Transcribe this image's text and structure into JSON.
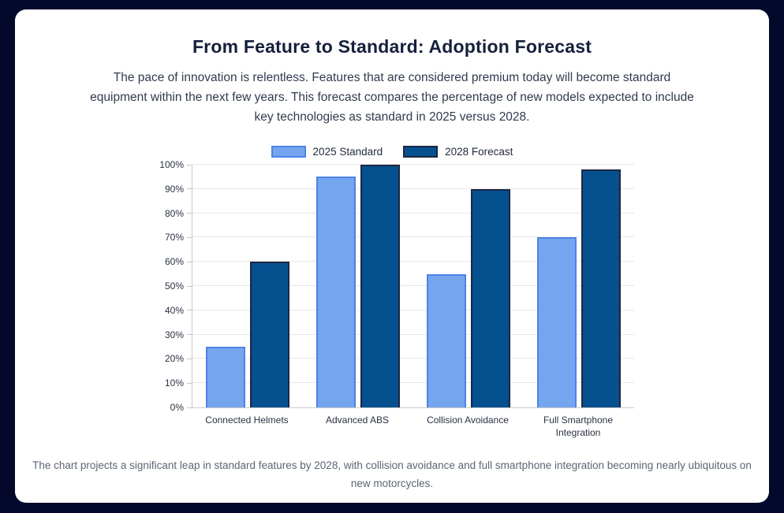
{
  "card": {
    "title": "From Feature to Standard: Adoption Forecast",
    "subtitle": "The pace of innovation is relentless. Features that are considered premium today will become standard equipment within the next few years. This forecast compares the percentage of new models expected to include key technologies as standard in 2025 versus 2028.",
    "footer": "The chart projects a significant leap in standard features by 2028, with collision avoidance and full smartphone integration becoming nearly ubiquitous on new motorcycles."
  },
  "colors": {
    "page_background": "#04082a",
    "card_background": "#ffffff",
    "series_2025_fill": "#76a5ef",
    "series_2025_border": "#4d82e8",
    "series_2028_fill": "#05508f",
    "series_2028_border": "#1c2742",
    "gridline": "#e7e7e9",
    "axis": "#c9c9c9"
  },
  "chart_data": {
    "type": "bar",
    "title": "From Feature to Standard: Adoption Forecast",
    "categories": [
      "Connected Helmets",
      "Advanced ABS",
      "Collision Avoidance",
      "Full Smartphone Integration"
    ],
    "series": [
      {
        "name": "2025 Standard",
        "values": [
          25,
          95,
          55,
          70
        ],
        "fill": "#76a5ef",
        "border": "#4d82e8"
      },
      {
        "name": "2028 Forecast",
        "values": [
          60,
          100,
          90,
          98
        ],
        "fill": "#05508f",
        "border": "#1c2742"
      }
    ],
    "xlabel": "",
    "ylabel": "",
    "ylim": [
      0,
      100
    ],
    "yticks": [
      0,
      10,
      20,
      30,
      40,
      50,
      60,
      70,
      80,
      90,
      100
    ],
    "ytick_suffix": "%",
    "grid": true,
    "legend_position": "top"
  }
}
